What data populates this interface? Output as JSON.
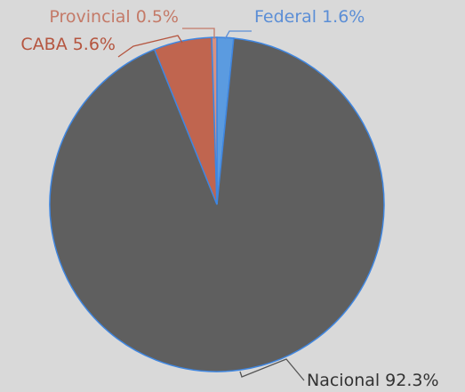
{
  "chart_data": {
    "type": "pie",
    "categories": [
      "Federal",
      "Nacional",
      "CABA",
      "Provincial"
    ],
    "values": [
      1.6,
      92.3,
      5.6,
      0.5
    ],
    "value_labels": [
      "1.6%",
      "92.3%",
      "5.6%",
      "0.5%"
    ],
    "colors": [
      "#5b9be0",
      "#5f5f5f",
      "#c0654f",
      "#d9907f"
    ],
    "label_colors": [
      "#5b8ed6",
      "#333333",
      "#b5553f",
      "#c47a68"
    ]
  }
}
